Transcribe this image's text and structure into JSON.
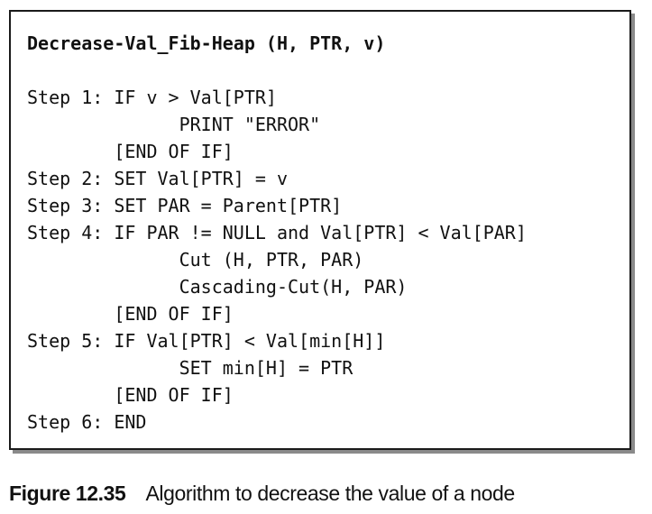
{
  "algorithm": {
    "title": "Decrease-Val_Fib-Heap (H, PTR, v)",
    "lines": [
      "Step 1: IF v > Val[PTR]",
      "              PRINT \"ERROR\"",
      "        [END OF IF]",
      "Step 2: SET Val[PTR] = v",
      "Step 3: SET PAR = Parent[PTR]",
      "Step 4: IF PAR != NULL and Val[PTR] < Val[PAR]",
      "              Cut (H, PTR, PAR)",
      "              Cascading-Cut(H, PAR)",
      "        [END OF IF]",
      "Step 5: IF Val[PTR] < Val[min[H]]",
      "              SET min[H] = PTR",
      "        [END OF IF]",
      "Step 6: END"
    ]
  },
  "caption": {
    "label": "Figure 12.35",
    "text": "Algorithm to decrease the value of a node"
  }
}
